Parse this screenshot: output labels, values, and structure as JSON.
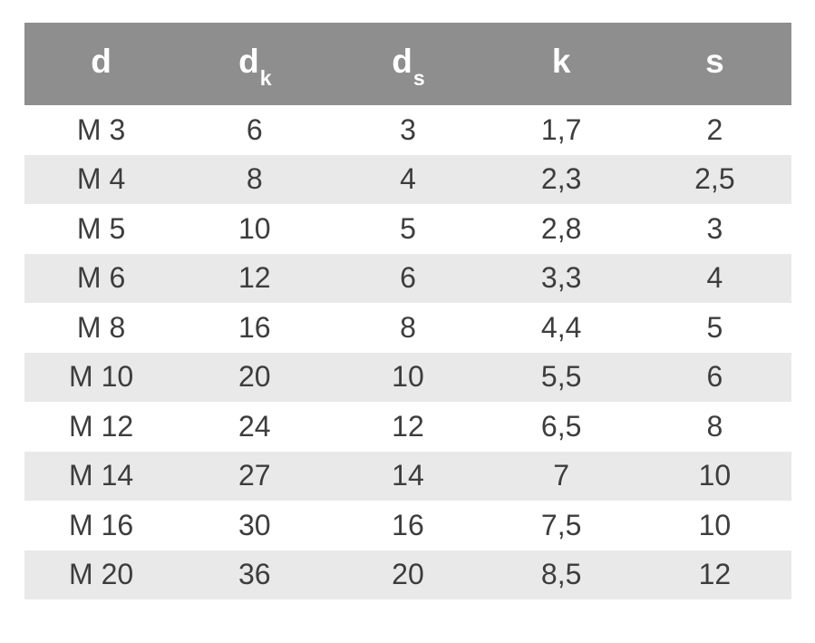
{
  "table": {
    "header_bg": "#8e8e8e",
    "header_text_color": "#ffffff",
    "zebra_row_bg": "#e9e9e9",
    "white_row_bg": "#ffffff",
    "cell_text_color": "#3d3d3d",
    "page_bg": "#ffffff",
    "headers": [
      {
        "base": "d",
        "sub": ""
      },
      {
        "base": "d",
        "sub": "k"
      },
      {
        "base": "d",
        "sub": "s"
      },
      {
        "base": "k",
        "sub": ""
      },
      {
        "base": "s",
        "sub": ""
      }
    ],
    "rows": [
      [
        "M 3",
        "6",
        "3",
        "1,7",
        "2"
      ],
      [
        "M 4",
        "8",
        "4",
        "2,3",
        "2,5"
      ],
      [
        "M 5",
        "10",
        "5",
        "2,8",
        "3"
      ],
      [
        "M 6",
        "12",
        "6",
        "3,3",
        "4"
      ],
      [
        "M 8",
        "16",
        "8",
        "4,4",
        "5"
      ],
      [
        "M 10",
        "20",
        "10",
        "5,5",
        "6"
      ],
      [
        "M 12",
        "24",
        "12",
        "6,5",
        "8"
      ],
      [
        "M 14",
        "27",
        "14",
        "7",
        "10"
      ],
      [
        "M 16",
        "30",
        "16",
        "7,5",
        "10"
      ],
      [
        "M 20",
        "36",
        "20",
        "8,5",
        "12"
      ]
    ]
  }
}
